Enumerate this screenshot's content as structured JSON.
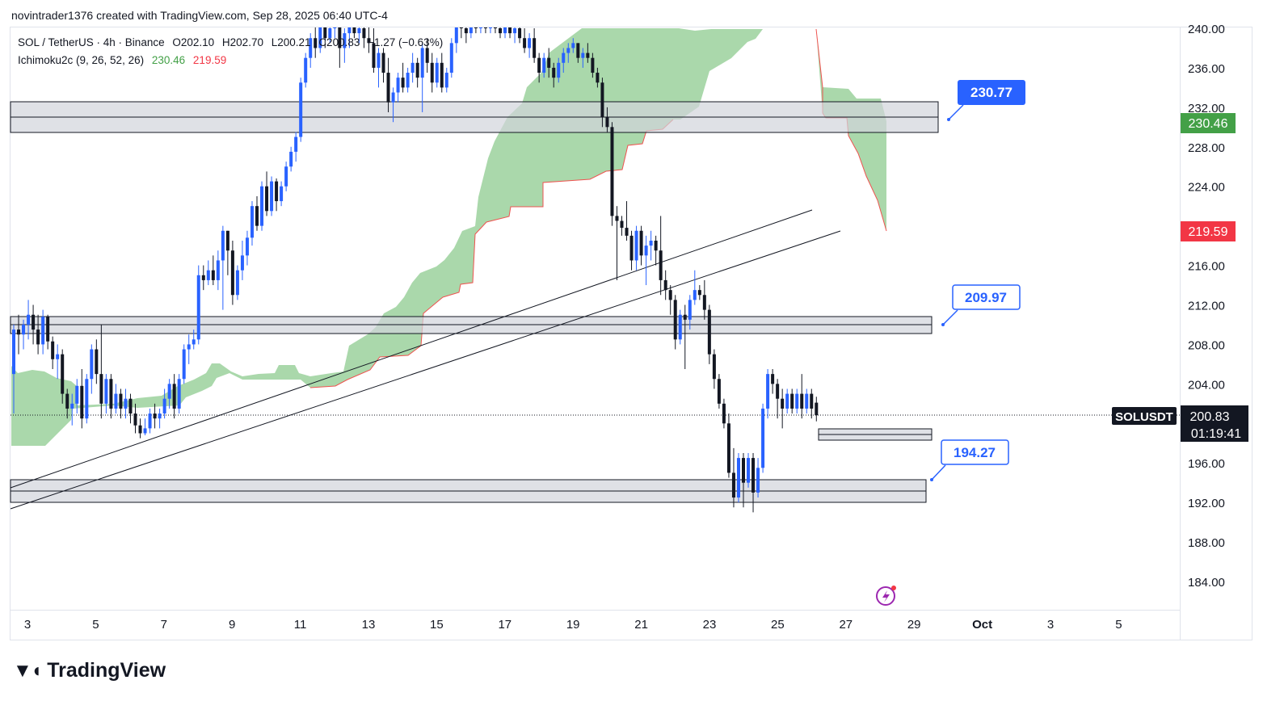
{
  "header": {
    "publisher_line": "novintrader1376 created with TradingView.com, Sep 28, 2025 06:40 UTC-4"
  },
  "legend": {
    "symbol": "SOL / TetherUS · 4h · Binance",
    "ohlc": {
      "open": "O202.10",
      "high": "H202.70",
      "low": "L200.21",
      "close": "C200.83",
      "change": "−1.27 (−0.63%)"
    },
    "indicator": "Ichimoku2c (9, 26, 52, 26)",
    "indicator_val1": "230.46",
    "indicator_val2": "219.59"
  },
  "colors": {
    "bull": "#2962ff",
    "bear": "#131722",
    "cloud": "#a5d6a7",
    "cloud_line": "#ef5350",
    "zone_fill": "#d1d4dc",
    "callout": "#2962ff",
    "badge_green": "#43a047",
    "badge_red": "#f23645"
  },
  "price_axis": {
    "ticks": [
      "240.00",
      "236.00",
      "232.00",
      "228.00",
      "224.00",
      "216.00",
      "212.00",
      "208.00",
      "204.00",
      "196.00",
      "192.00",
      "188.00",
      "184.00"
    ],
    "badge_top": "230.46",
    "badge_mid": "219.59",
    "badge_price": "200.83",
    "badge_timer": "01:19:41",
    "symbol_tag": "SOLUSDT"
  },
  "time_axis": {
    "ticks": [
      "3",
      "5",
      "7",
      "9",
      "11",
      "13",
      "15",
      "17",
      "19",
      "21",
      "23",
      "25",
      "27",
      "29",
      "Oct",
      "3",
      "5"
    ]
  },
  "callouts": [
    "230.77",
    "209.97",
    "194.27"
  ],
  "brand": {
    "name": "TradingView"
  },
  "chart_data": {
    "type": "candlestick",
    "symbol": "SOLUSDT",
    "interval": "4h",
    "ylim": [
      182,
      241
    ],
    "current_price": 200.83,
    "ichimoku_lead_a": 230.46,
    "ichimoku_lead_b": 219.59,
    "zones": [
      {
        "low": 229.7,
        "high": 232.6,
        "label": "230.77"
      },
      {
        "low": 209.1,
        "high": 210.8,
        "label": "209.97"
      },
      {
        "low": 197.3,
        "high": 198.4
      },
      {
        "low": 192.1,
        "high": 194.5,
        "label": "194.27"
      }
    ],
    "trendlines": [
      {
        "from": [
          "Sep 3",
          193.4
        ],
        "to": [
          "Sep 28",
          221.8
        ]
      },
      {
        "from": [
          "Sep 3",
          191.6
        ],
        "to": [
          "Sep 28",
          218.7
        ]
      }
    ],
    "candles": [
      {
        "o": 205.0,
        "h": 210.0,
        "l": 201.0,
        "c": 209.5
      },
      {
        "o": 209.5,
        "h": 211.0,
        "l": 207.0,
        "c": 209.0
      },
      {
        "o": 209.0,
        "h": 210.5,
        "l": 207.5,
        "c": 210.0
      },
      {
        "o": 210.0,
        "h": 212.5,
        "l": 208.5,
        "c": 211.0
      },
      {
        "o": 211.0,
        "h": 212.0,
        "l": 208.0,
        "c": 209.5
      },
      {
        "o": 209.5,
        "h": 211.0,
        "l": 207.0,
        "c": 208.0
      },
      {
        "o": 208.0,
        "h": 211.5,
        "l": 207.0,
        "c": 210.8
      },
      {
        "o": 210.8,
        "h": 211.0,
        "l": 207.5,
        "c": 208.3
      },
      {
        "o": 208.3,
        "h": 208.8,
        "l": 205.5,
        "c": 206.5
      },
      {
        "o": 206.5,
        "h": 208.0,
        "l": 204.5,
        "c": 207.0
      },
      {
        "o": 207.0,
        "h": 207.5,
        "l": 202.0,
        "c": 203.0
      },
      {
        "o": 203.0,
        "h": 203.5,
        "l": 200.5,
        "c": 201.5
      },
      {
        "o": 201.5,
        "h": 203.0,
        "l": 199.8,
        "c": 202.0
      },
      {
        "o": 202.0,
        "h": 204.5,
        "l": 201.0,
        "c": 203.8
      },
      {
        "o": 203.8,
        "h": 205.5,
        "l": 199.5,
        "c": 200.5
      },
      {
        "o": 200.5,
        "h": 205.0,
        "l": 200.0,
        "c": 204.5
      },
      {
        "o": 204.5,
        "h": 208.0,
        "l": 203.0,
        "c": 207.5
      },
      {
        "o": 207.5,
        "h": 208.5,
        "l": 204.0,
        "c": 205.0
      },
      {
        "o": 205.0,
        "h": 210.0,
        "l": 200.5,
        "c": 202.0
      },
      {
        "o": 202.0,
        "h": 205.0,
        "l": 201.0,
        "c": 204.5
      },
      {
        "o": 204.5,
        "h": 205.0,
        "l": 200.5,
        "c": 201.5
      },
      {
        "o": 201.5,
        "h": 204.0,
        "l": 201.0,
        "c": 203.0
      },
      {
        "o": 203.0,
        "h": 203.5,
        "l": 200.5,
        "c": 201.5
      },
      {
        "o": 201.5,
        "h": 203.5,
        "l": 200.5,
        "c": 202.5
      },
      {
        "o": 202.5,
        "h": 203.0,
        "l": 200.0,
        "c": 201.0
      },
      {
        "o": 201.0,
        "h": 202.0,
        "l": 199.0,
        "c": 199.8
      },
      {
        "o": 199.8,
        "h": 200.5,
        "l": 198.5,
        "c": 199.0
      },
      {
        "o": 199.0,
        "h": 200.5,
        "l": 198.8,
        "c": 199.5
      },
      {
        "o": 199.5,
        "h": 201.5,
        "l": 199.0,
        "c": 201.0
      },
      {
        "o": 201.0,
        "h": 202.0,
        "l": 199.5,
        "c": 200.5
      },
      {
        "o": 200.5,
        "h": 201.5,
        "l": 199.5,
        "c": 201.0
      },
      {
        "o": 201.0,
        "h": 203.5,
        "l": 200.5,
        "c": 202.5
      },
      {
        "o": 202.5,
        "h": 204.5,
        "l": 201.5,
        "c": 204.0
      },
      {
        "o": 204.0,
        "h": 205.0,
        "l": 200.5,
        "c": 201.5
      },
      {
        "o": 201.5,
        "h": 205.0,
        "l": 201.0,
        "c": 204.5
      },
      {
        "o": 204.5,
        "h": 208.0,
        "l": 204.0,
        "c": 207.5
      },
      {
        "o": 207.5,
        "h": 209.0,
        "l": 206.0,
        "c": 208.0
      },
      {
        "o": 208.0,
        "h": 209.5,
        "l": 207.5,
        "c": 208.5
      },
      {
        "o": 208.5,
        "h": 216.0,
        "l": 208.0,
        "c": 215.0
      },
      {
        "o": 215.0,
        "h": 216.0,
        "l": 213.5,
        "c": 214.5
      },
      {
        "o": 214.5,
        "h": 216.5,
        "l": 214.0,
        "c": 215.5
      },
      {
        "o": 215.5,
        "h": 217.0,
        "l": 214.0,
        "c": 214.5
      },
      {
        "o": 214.5,
        "h": 217.5,
        "l": 213.5,
        "c": 216.5
      },
      {
        "o": 216.5,
        "h": 220.0,
        "l": 211.5,
        "c": 219.5
      },
      {
        "o": 219.5,
        "h": 219.5,
        "l": 215.0,
        "c": 217.5
      },
      {
        "o": 217.5,
        "h": 218.5,
        "l": 212.0,
        "c": 213.0
      },
      {
        "o": 213.0,
        "h": 216.0,
        "l": 212.5,
        "c": 215.5
      },
      {
        "o": 215.5,
        "h": 218.5,
        "l": 214.5,
        "c": 217.0
      },
      {
        "o": 217.0,
        "h": 219.5,
        "l": 216.0,
        "c": 218.8
      },
      {
        "o": 218.8,
        "h": 222.5,
        "l": 218.0,
        "c": 222.0
      },
      {
        "o": 222.0,
        "h": 223.0,
        "l": 219.5,
        "c": 220.0
      },
      {
        "o": 220.0,
        "h": 224.5,
        "l": 219.5,
        "c": 224.0
      },
      {
        "o": 224.0,
        "h": 225.5,
        "l": 221.0,
        "c": 221.5
      },
      {
        "o": 221.5,
        "h": 225.0,
        "l": 221.0,
        "c": 224.5
      },
      {
        "o": 224.5,
        "h": 224.8,
        "l": 221.5,
        "c": 222.5
      },
      {
        "o": 222.5,
        "h": 224.5,
        "l": 222.0,
        "c": 224.0
      },
      {
        "o": 224.0,
        "h": 226.5,
        "l": 223.5,
        "c": 226.0
      },
      {
        "o": 226.0,
        "h": 228.0,
        "l": 225.5,
        "c": 227.5
      },
      {
        "o": 227.5,
        "h": 229.5,
        "l": 226.5,
        "c": 229.0
      },
      {
        "o": 229.0,
        "h": 235.0,
        "l": 228.5,
        "c": 234.5
      },
      {
        "o": 234.5,
        "h": 237.5,
        "l": 234.0,
        "c": 237.0
      },
      {
        "o": 237.0,
        "h": 239.5,
        "l": 236.0,
        "c": 239.0
      },
      {
        "o": 239.0,
        "h": 240.5,
        "l": 237.0,
        "c": 238.0
      },
      {
        "o": 238.0,
        "h": 241.0,
        "l": 237.5,
        "c": 240.5
      },
      {
        "o": 240.5,
        "h": 241.0,
        "l": 238.0,
        "c": 239.0
      },
      {
        "o": 239.0,
        "h": 241.0,
        "l": 238.5,
        "c": 240.0
      },
      {
        "o": 240.0,
        "h": 241.0,
        "l": 239.0,
        "c": 240.5
      },
      {
        "o": 240.5,
        "h": 241.0,
        "l": 236.0,
        "c": 238.0
      },
      {
        "o": 238.0,
        "h": 240.0,
        "l": 236.5,
        "c": 239.5
      },
      {
        "o": 239.5,
        "h": 241.0,
        "l": 238.0,
        "c": 240.5
      },
      {
        "o": 240.5,
        "h": 241.0,
        "l": 239.0,
        "c": 239.5
      },
      {
        "o": 239.5,
        "h": 241.0,
        "l": 238.5,
        "c": 240.0
      },
      {
        "o": 240.0,
        "h": 241.0,
        "l": 238.0,
        "c": 239.0
      },
      {
        "o": 239.0,
        "h": 240.5,
        "l": 237.5,
        "c": 238.5
      },
      {
        "o": 238.5,
        "h": 240.0,
        "l": 235.5,
        "c": 236.0
      },
      {
        "o": 236.0,
        "h": 238.0,
        "l": 234.0,
        "c": 237.5
      },
      {
        "o": 237.5,
        "h": 238.0,
        "l": 234.5,
        "c": 235.5
      },
      {
        "o": 235.5,
        "h": 237.0,
        "l": 231.5,
        "c": 232.5
      },
      {
        "o": 232.5,
        "h": 234.0,
        "l": 230.5,
        "c": 233.5
      },
      {
        "o": 233.5,
        "h": 235.5,
        "l": 232.5,
        "c": 235.0
      },
      {
        "o": 235.0,
        "h": 236.5,
        "l": 233.5,
        "c": 234.0
      },
      {
        "o": 234.0,
        "h": 236.0,
        "l": 233.5,
        "c": 235.5
      },
      {
        "o": 235.5,
        "h": 237.5,
        "l": 234.5,
        "c": 236.5
      },
      {
        "o": 236.5,
        "h": 237.0,
        "l": 234.0,
        "c": 235.0
      },
      {
        "o": 235.0,
        "h": 238.5,
        "l": 231.5,
        "c": 238.0
      },
      {
        "o": 238.0,
        "h": 239.0,
        "l": 235.5,
        "c": 236.5
      },
      {
        "o": 236.5,
        "h": 237.5,
        "l": 233.5,
        "c": 234.5
      },
      {
        "o": 234.5,
        "h": 237.0,
        "l": 234.0,
        "c": 236.5
      },
      {
        "o": 236.5,
        "h": 237.5,
        "l": 233.5,
        "c": 234.0
      },
      {
        "o": 234.0,
        "h": 236.0,
        "l": 233.5,
        "c": 235.5
      },
      {
        "o": 235.5,
        "h": 239.0,
        "l": 235.0,
        "c": 238.5
      },
      {
        "o": 238.5,
        "h": 241.0,
        "l": 237.5,
        "c": 240.5
      },
      {
        "o": 240.5,
        "h": 241.0,
        "l": 239.0,
        "c": 240.0
      },
      {
        "o": 240.0,
        "h": 241.0,
        "l": 238.5,
        "c": 239.5
      },
      {
        "o": 239.5,
        "h": 241.0,
        "l": 239.0,
        "c": 240.5
      },
      {
        "o": 240.5,
        "h": 241.0,
        "l": 239.5,
        "c": 240.0
      },
      {
        "o": 240.0,
        "h": 241.0,
        "l": 239.5,
        "c": 240.5
      },
      {
        "o": 240.5,
        "h": 241.0,
        "l": 239.5,
        "c": 240.0
      },
      {
        "o": 240.0,
        "h": 241.0,
        "l": 239.5,
        "c": 240.5
      },
      {
        "o": 240.5,
        "h": 241.0,
        "l": 239.5,
        "c": 240.0
      },
      {
        "o": 240.0,
        "h": 241.0,
        "l": 239.0,
        "c": 239.5
      },
      {
        "o": 239.5,
        "h": 241.0,
        "l": 239.0,
        "c": 240.5
      },
      {
        "o": 240.5,
        "h": 241.0,
        "l": 239.0,
        "c": 239.5
      },
      {
        "o": 239.5,
        "h": 241.0,
        "l": 238.5,
        "c": 240.0
      },
      {
        "o": 240.0,
        "h": 241.0,
        "l": 238.5,
        "c": 239.0
      },
      {
        "o": 239.0,
        "h": 240.0,
        "l": 237.5,
        "c": 238.0
      },
      {
        "o": 238.0,
        "h": 239.5,
        "l": 237.0,
        "c": 239.0
      },
      {
        "o": 239.0,
        "h": 240.0,
        "l": 236.5,
        "c": 237.0
      },
      {
        "o": 237.0,
        "h": 237.5,
        "l": 234.5,
        "c": 235.5
      },
      {
        "o": 235.5,
        "h": 237.5,
        "l": 235.0,
        "c": 237.0
      },
      {
        "o": 237.0,
        "h": 238.0,
        "l": 235.0,
        "c": 236.0
      },
      {
        "o": 236.0,
        "h": 236.5,
        "l": 234.0,
        "c": 235.0
      },
      {
        "o": 235.0,
        "h": 237.0,
        "l": 234.5,
        "c": 236.5
      },
      {
        "o": 236.5,
        "h": 238.0,
        "l": 235.5,
        "c": 237.5
      },
      {
        "o": 237.5,
        "h": 238.5,
        "l": 236.5,
        "c": 238.0
      },
      {
        "o": 238.0,
        "h": 239.0,
        "l": 237.5,
        "c": 238.5
      },
      {
        "o": 238.5,
        "h": 238.5,
        "l": 236.5,
        "c": 237.0
      },
      {
        "o": 237.0,
        "h": 238.0,
        "l": 236.0,
        "c": 237.5
      },
      {
        "o": 237.5,
        "h": 238.5,
        "l": 236.5,
        "c": 237.0
      },
      {
        "o": 237.0,
        "h": 237.5,
        "l": 235.0,
        "c": 235.5
      },
      {
        "o": 235.5,
        "h": 236.0,
        "l": 234.0,
        "c": 234.5
      },
      {
        "o": 234.5,
        "h": 235.0,
        "l": 230.0,
        "c": 231.0
      },
      {
        "o": 231.0,
        "h": 232.0,
        "l": 229.5,
        "c": 230.0
      },
      {
        "o": 230.0,
        "h": 230.5,
        "l": 220.0,
        "c": 221.0
      },
      {
        "o": 221.0,
        "h": 222.0,
        "l": 214.5,
        "c": 220.5
      },
      {
        "o": 220.5,
        "h": 221.0,
        "l": 219.0,
        "c": 219.8
      },
      {
        "o": 219.8,
        "h": 222.5,
        "l": 218.5,
        "c": 219.0
      },
      {
        "o": 219.0,
        "h": 219.5,
        "l": 215.5,
        "c": 216.5
      },
      {
        "o": 216.5,
        "h": 220.0,
        "l": 215.5,
        "c": 219.5
      },
      {
        "o": 219.5,
        "h": 220.0,
        "l": 216.0,
        "c": 217.0
      },
      {
        "o": 217.0,
        "h": 219.0,
        "l": 214.0,
        "c": 218.0
      },
      {
        "o": 218.0,
        "h": 219.5,
        "l": 216.5,
        "c": 218.5
      },
      {
        "o": 218.5,
        "h": 219.0,
        "l": 216.0,
        "c": 217.5
      },
      {
        "o": 217.5,
        "h": 221.0,
        "l": 213.0,
        "c": 214.5
      },
      {
        "o": 214.5,
        "h": 215.5,
        "l": 212.5,
        "c": 213.5
      },
      {
        "o": 213.5,
        "h": 214.0,
        "l": 211.0,
        "c": 212.5
      },
      {
        "o": 212.5,
        "h": 213.0,
        "l": 207.5,
        "c": 208.5
      },
      {
        "o": 208.5,
        "h": 211.5,
        "l": 208.0,
        "c": 211.0
      },
      {
        "o": 211.0,
        "h": 212.0,
        "l": 205.5,
        "c": 210.5
      },
      {
        "o": 210.5,
        "h": 213.0,
        "l": 209.5,
        "c": 212.5
      },
      {
        "o": 212.5,
        "h": 215.5,
        "l": 212.0,
        "c": 213.5
      },
      {
        "o": 213.5,
        "h": 214.0,
        "l": 212.5,
        "c": 213.0
      },
      {
        "o": 213.0,
        "h": 214.5,
        "l": 210.5,
        "c": 211.5
      },
      {
        "o": 211.5,
        "h": 212.0,
        "l": 206.0,
        "c": 207.0
      },
      {
        "o": 207.0,
        "h": 207.5,
        "l": 203.5,
        "c": 204.5
      },
      {
        "o": 204.5,
        "h": 205.0,
        "l": 201.5,
        "c": 202.0
      },
      {
        "o": 202.0,
        "h": 202.5,
        "l": 199.5,
        "c": 200.0
      },
      {
        "o": 200.0,
        "h": 201.0,
        "l": 194.5,
        "c": 195.0
      },
      {
        "o": 195.0,
        "h": 197.5,
        "l": 191.5,
        "c": 192.5
      },
      {
        "o": 192.5,
        "h": 197.0,
        "l": 192.0,
        "c": 196.5
      },
      {
        "o": 196.5,
        "h": 197.0,
        "l": 191.5,
        "c": 194.0
      },
      {
        "o": 194.0,
        "h": 197.0,
        "l": 193.5,
        "c": 196.5
      },
      {
        "o": 196.5,
        "h": 197.0,
        "l": 191.0,
        "c": 193.0
      },
      {
        "o": 193.0,
        "h": 196.5,
        "l": 192.5,
        "c": 195.5
      },
      {
        "o": 195.5,
        "h": 202.0,
        "l": 195.0,
        "c": 201.5
      },
      {
        "o": 201.5,
        "h": 205.5,
        "l": 200.5,
        "c": 205.0
      },
      {
        "o": 205.0,
        "h": 205.5,
        "l": 203.0,
        "c": 204.0
      },
      {
        "o": 204.0,
        "h": 204.5,
        "l": 200.5,
        "c": 202.5
      },
      {
        "o": 202.5,
        "h": 203.5,
        "l": 199.5,
        "c": 201.5
      },
      {
        "o": 201.5,
        "h": 203.5,
        "l": 201.0,
        "c": 203.0
      },
      {
        "o": 203.0,
        "h": 203.5,
        "l": 201.0,
        "c": 201.5
      },
      {
        "o": 201.5,
        "h": 203.5,
        "l": 201.0,
        "c": 203.0
      },
      {
        "o": 203.0,
        "h": 205.0,
        "l": 200.5,
        "c": 201.5
      },
      {
        "o": 201.5,
        "h": 203.5,
        "l": 201.0,
        "c": 203.0
      },
      {
        "o": 203.0,
        "h": 203.5,
        "l": 200.5,
        "c": 201.5
      },
      {
        "o": 202.1,
        "h": 202.7,
        "l": 200.21,
        "c": 200.83
      }
    ]
  }
}
